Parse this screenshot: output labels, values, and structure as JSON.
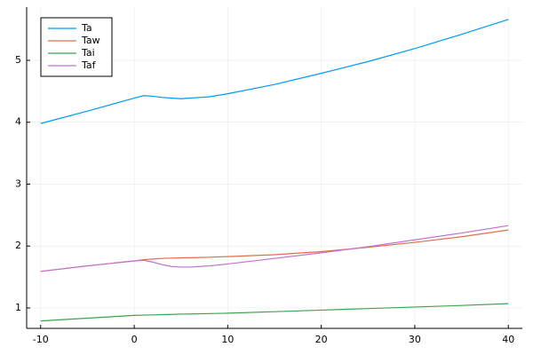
{
  "chart_data": {
    "type": "line",
    "x": [
      -10,
      -5,
      0,
      1,
      2,
      3,
      4,
      5,
      6,
      7,
      8,
      10,
      15,
      20,
      25,
      30,
      35,
      40
    ],
    "series": [
      {
        "name": "Ta",
        "color": "#009af9",
        "values": [
          3.98,
          4.18,
          4.39,
          4.43,
          4.42,
          4.4,
          4.39,
          4.38,
          4.39,
          4.4,
          4.41,
          4.46,
          4.61,
          4.79,
          4.98,
          5.19,
          5.42,
          5.66
        ]
      },
      {
        "name": "Taw",
        "color": "#e26f46",
        "values": [
          1.59,
          1.68,
          1.76,
          1.78,
          1.79,
          1.8,
          1.805,
          1.81,
          1.812,
          1.815,
          1.82,
          1.83,
          1.86,
          1.91,
          1.98,
          2.06,
          2.15,
          2.26
        ]
      },
      {
        "name": "Tai",
        "color": "#3da44d",
        "values": [
          0.79,
          0.835,
          0.88,
          0.884,
          0.888,
          0.892,
          0.896,
          0.9,
          0.903,
          0.906,
          0.909,
          0.915,
          0.94,
          0.965,
          0.99,
          1.015,
          1.04,
          1.07
        ]
      },
      {
        "name": "Taf",
        "color": "#c271d2",
        "values": [
          1.59,
          1.68,
          1.76,
          1.77,
          1.74,
          1.7,
          1.67,
          1.66,
          1.66,
          1.67,
          1.68,
          1.71,
          1.8,
          1.89,
          1.99,
          2.1,
          2.21,
          2.33
        ]
      }
    ],
    "xlim": [
      -11.5,
      41.5
    ],
    "xticks": [
      -10,
      0,
      10,
      20,
      30,
      40
    ],
    "ylim": [
      0.67,
      5.86
    ],
    "yticks": [
      1,
      2,
      3,
      4,
      5
    ],
    "grid": true,
    "legend": "top-left"
  }
}
